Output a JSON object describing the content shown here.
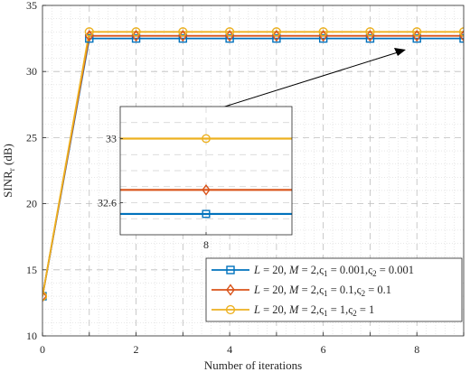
{
  "chart_data": {
    "type": "line",
    "xlabel": "Number of iterations",
    "ylabel_main": "SINR",
    "ylabel_sub": "r",
    "ylabel_unit": " (dB)",
    "xlim": [
      0,
      9
    ],
    "ylim": [
      10,
      35
    ],
    "xticks": [
      "0",
      "2",
      "4",
      "6",
      "8"
    ],
    "yticks": [
      "10",
      "15",
      "20",
      "25",
      "30",
      "35"
    ],
    "grid": true,
    "legend_position": "bottom-right",
    "x": [
      0,
      1,
      2,
      3,
      4,
      5,
      6,
      7,
      8,
      9
    ],
    "series": [
      {
        "name": "L = 20, M = 2, ς1 = 0.001, ς2 = 0.001",
        "color": "#0072BD",
        "marker": "square",
        "values": [
          13,
          32.5,
          32.5,
          32.5,
          32.5,
          32.5,
          32.5,
          32.5,
          32.5,
          32.5
        ]
      },
      {
        "name": "L = 20, M = 2, ς1 = 0.1, ς2 = 0.1",
        "color": "#D95319",
        "marker": "diamond",
        "values": [
          13,
          32.7,
          32.7,
          32.7,
          32.7,
          32.7,
          32.7,
          32.7,
          32.7,
          32.7
        ]
      },
      {
        "name": "L = 20, M = 2, ς1 = 1, ς2 = 1",
        "color": "#EDB120",
        "marker": "circle",
        "values": [
          13,
          33,
          33,
          33,
          33,
          33,
          33,
          33,
          33,
          33
        ]
      }
    ],
    "legend": [
      {
        "L": "L",
        "lval": " = 20, ",
        "M": "M",
        "mval": " = 2,",
        "s1": "ς",
        "s1sub": "1",
        "s1val": " = 0.001,",
        "s2": "ς",
        "s2sub": "2",
        "s2val": " = 0.001"
      },
      {
        "L": "L",
        "lval": " = 20, ",
        "M": "M",
        "mval": " = 2,",
        "s1": "ς",
        "s1sub": "1",
        "s1val": " = 0.1,",
        "s2": "ς",
        "s2sub": "2",
        "s2val": " = 0.1"
      },
      {
        "L": "L",
        "lval": " = 20, ",
        "M": "M",
        "mval": " = 2,",
        "s1": "ς",
        "s1sub": "1",
        "s1val": " = 1,",
        "s2": "ς",
        "s2sub": "2",
        "s2val": " = 1"
      }
    ],
    "inset": {
      "xlim": [
        7.6,
        8.4
      ],
      "ylim": [
        32.4,
        33.2
      ],
      "x_marker": 8,
      "xticks": [
        "8"
      ],
      "yticks": [
        "32.6",
        "33"
      ],
      "ytick_values": [
        32.6,
        33
      ],
      "values": [
        32.53,
        32.68,
        33.0
      ]
    }
  }
}
